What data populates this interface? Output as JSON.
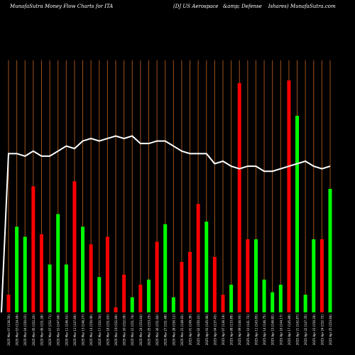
{
  "header": {
    "left_title": "MunafaSutra  Money Flow  Charts for ITA",
    "right_title": "(DJ US Aerospace   &amp; Defense    Ishares) MunafaSutra.com"
  },
  "chart_data": {
    "type": "bar",
    "title": "",
    "ylim": [
      0,
      100
    ],
    "bar_colors": {
      "up": "#00ff00",
      "down": "#ff0000"
    },
    "line_color": "#ffffff",
    "grid_color": "#a0521a",
    "grid": "vertical",
    "categories": [
      "Fri 07 Mar 2025 ...",
      "2025 03 Mar ...",
      "Tue 04 Mar 2025 ...",
      "Wed 05 Mar ...",
      "Thu 06 Mar ...",
      "Fri 07 Mar ...",
      "Mon 10 Mar ...",
      "Tue 11 Mar ...",
      "Wed 12 Mar ...",
      "Thu 13 Mar ...",
      "Fri 14 Mar ...",
      "Mon 17 Mar ...",
      "Tue 18 Mar ...",
      "Wed 19 Mar ...",
      "Thu 20 Mar ...",
      "Fri 21 Mar ...",
      "Mon 24 Mar ...",
      "Tue 25 Mar ...",
      "Wed 26 Mar ...",
      "Thu 27 Mar ...",
      "Fri 28 Mar ...",
      "Mon 31 Mar ...",
      "Tue 01 Apr ...",
      "Wed 02 Apr ...",
      "Thu 03 Apr ...",
      "Fri 04 Apr ...",
      "Mon 07 Apr ...",
      "Tue 08 Apr ...",
      "Wed 09 Apr ...",
      "Thu 10 Apr ...",
      "Fri 11 Apr ...",
      "Mon 14 Apr ...",
      "Tue 15 Apr ...",
      "Wed 16 Apr ...",
      "Thu 17 Apr ...",
      "Mon 21 Apr ...",
      "Tue 22 Apr ...",
      "Wed 23 Apr ...",
      "Thu 24 Apr ...",
      "Fri 25 Apr ..."
    ],
    "x_tick_labels": [
      "2025 Mar 07 (136.50)",
      "2025 Mar 03 (134.49)",
      "2025 Mar 04 (150.03)",
      "2025 Mar 05 (152.20)",
      "2025 Mar 06 (151.28)",
      "2025 Mar 07 (152.71)",
      "2025 Mar 10 (147.69)",
      "2025 Mar 11 (146.41)",
      "2025 Mar 12 (147.69)",
      "2025 Mar 13 (146.27)",
      "2025 Mar 14 (150.96)",
      "2025 Mar 17 (152.50)",
      "2025 Mar 18 (151.63)",
      "2025 Mar 19 (152.69)",
      "2025 Mar 20 (152.09)",
      "2025 Mar 21 (151.74)",
      "2025 Mar 24 (153.64)",
      "2025 Mar 25 (153.25)",
      "2025 Mar 26 (151.60)",
      "2025 Mar 27 (151.48)",
      "2025 Mar 28 (150.12)",
      "2025 Mar 31 (148.92)",
      "2025 Apr 01 (149.36)",
      "2025 Apr 02 (150.41)",
      "2025 Apr 03 (145.96)",
      "2025 Apr 04 (137.43)",
      "2025 Apr 07 (136.19)",
      "2025 Apr 08 (133.89)",
      "2025 Apr 09 (146.93)",
      "2025 Apr 10 (141.72)",
      "2025 Apr 11 (143.83)",
      "2025 Apr 14 (146.75)",
      "2025 Apr 15 (146.82)",
      "2025 Apr 16 (144.17)",
      "2025 Apr 17 (145.89)",
      "2025 Apr 21 (142.87)",
      "2025 Apr 22 (147.35)",
      "2025 Apr 23 (150.29)",
      "2025 Apr 24 (152.72)",
      "2025 Apr 25 (153.84)"
    ],
    "series": [
      {
        "type": "bar",
        "values": [
          7,
          34,
          30,
          50,
          31,
          19,
          39,
          19,
          52,
          34,
          27,
          14,
          30,
          2,
          15,
          6,
          11,
          13,
          28,
          35,
          6,
          20,
          24,
          43,
          36,
          22,
          7,
          11,
          91,
          29,
          29,
          13,
          8,
          11,
          92,
          78,
          7,
          29,
          29,
          49
        ],
        "directions": [
          "down",
          "up",
          "up",
          "down",
          "down",
          "up",
          "up",
          "up",
          "down",
          "up",
          "down",
          "up",
          "down",
          "down",
          "down",
          "up",
          "down",
          "up",
          "down",
          "up",
          "up",
          "down",
          "down",
          "down",
          "up",
          "down",
          "down",
          "up",
          "down",
          "down",
          "up",
          "up",
          "up",
          "up",
          "down",
          "up",
          "up",
          "up",
          "down",
          "up"
        ]
      },
      {
        "type": "line",
        "values": [
          63,
          63,
          62,
          64,
          62,
          62,
          64,
          66,
          65,
          68,
          69,
          68,
          69,
          70,
          69,
          70,
          67,
          67,
          68,
          68,
          66,
          64,
          63,
          63,
          63,
          59,
          60,
          58,
          57,
          58,
          58,
          56,
          56,
          57,
          58,
          59,
          60,
          58,
          57,
          58
        ]
      }
    ]
  }
}
